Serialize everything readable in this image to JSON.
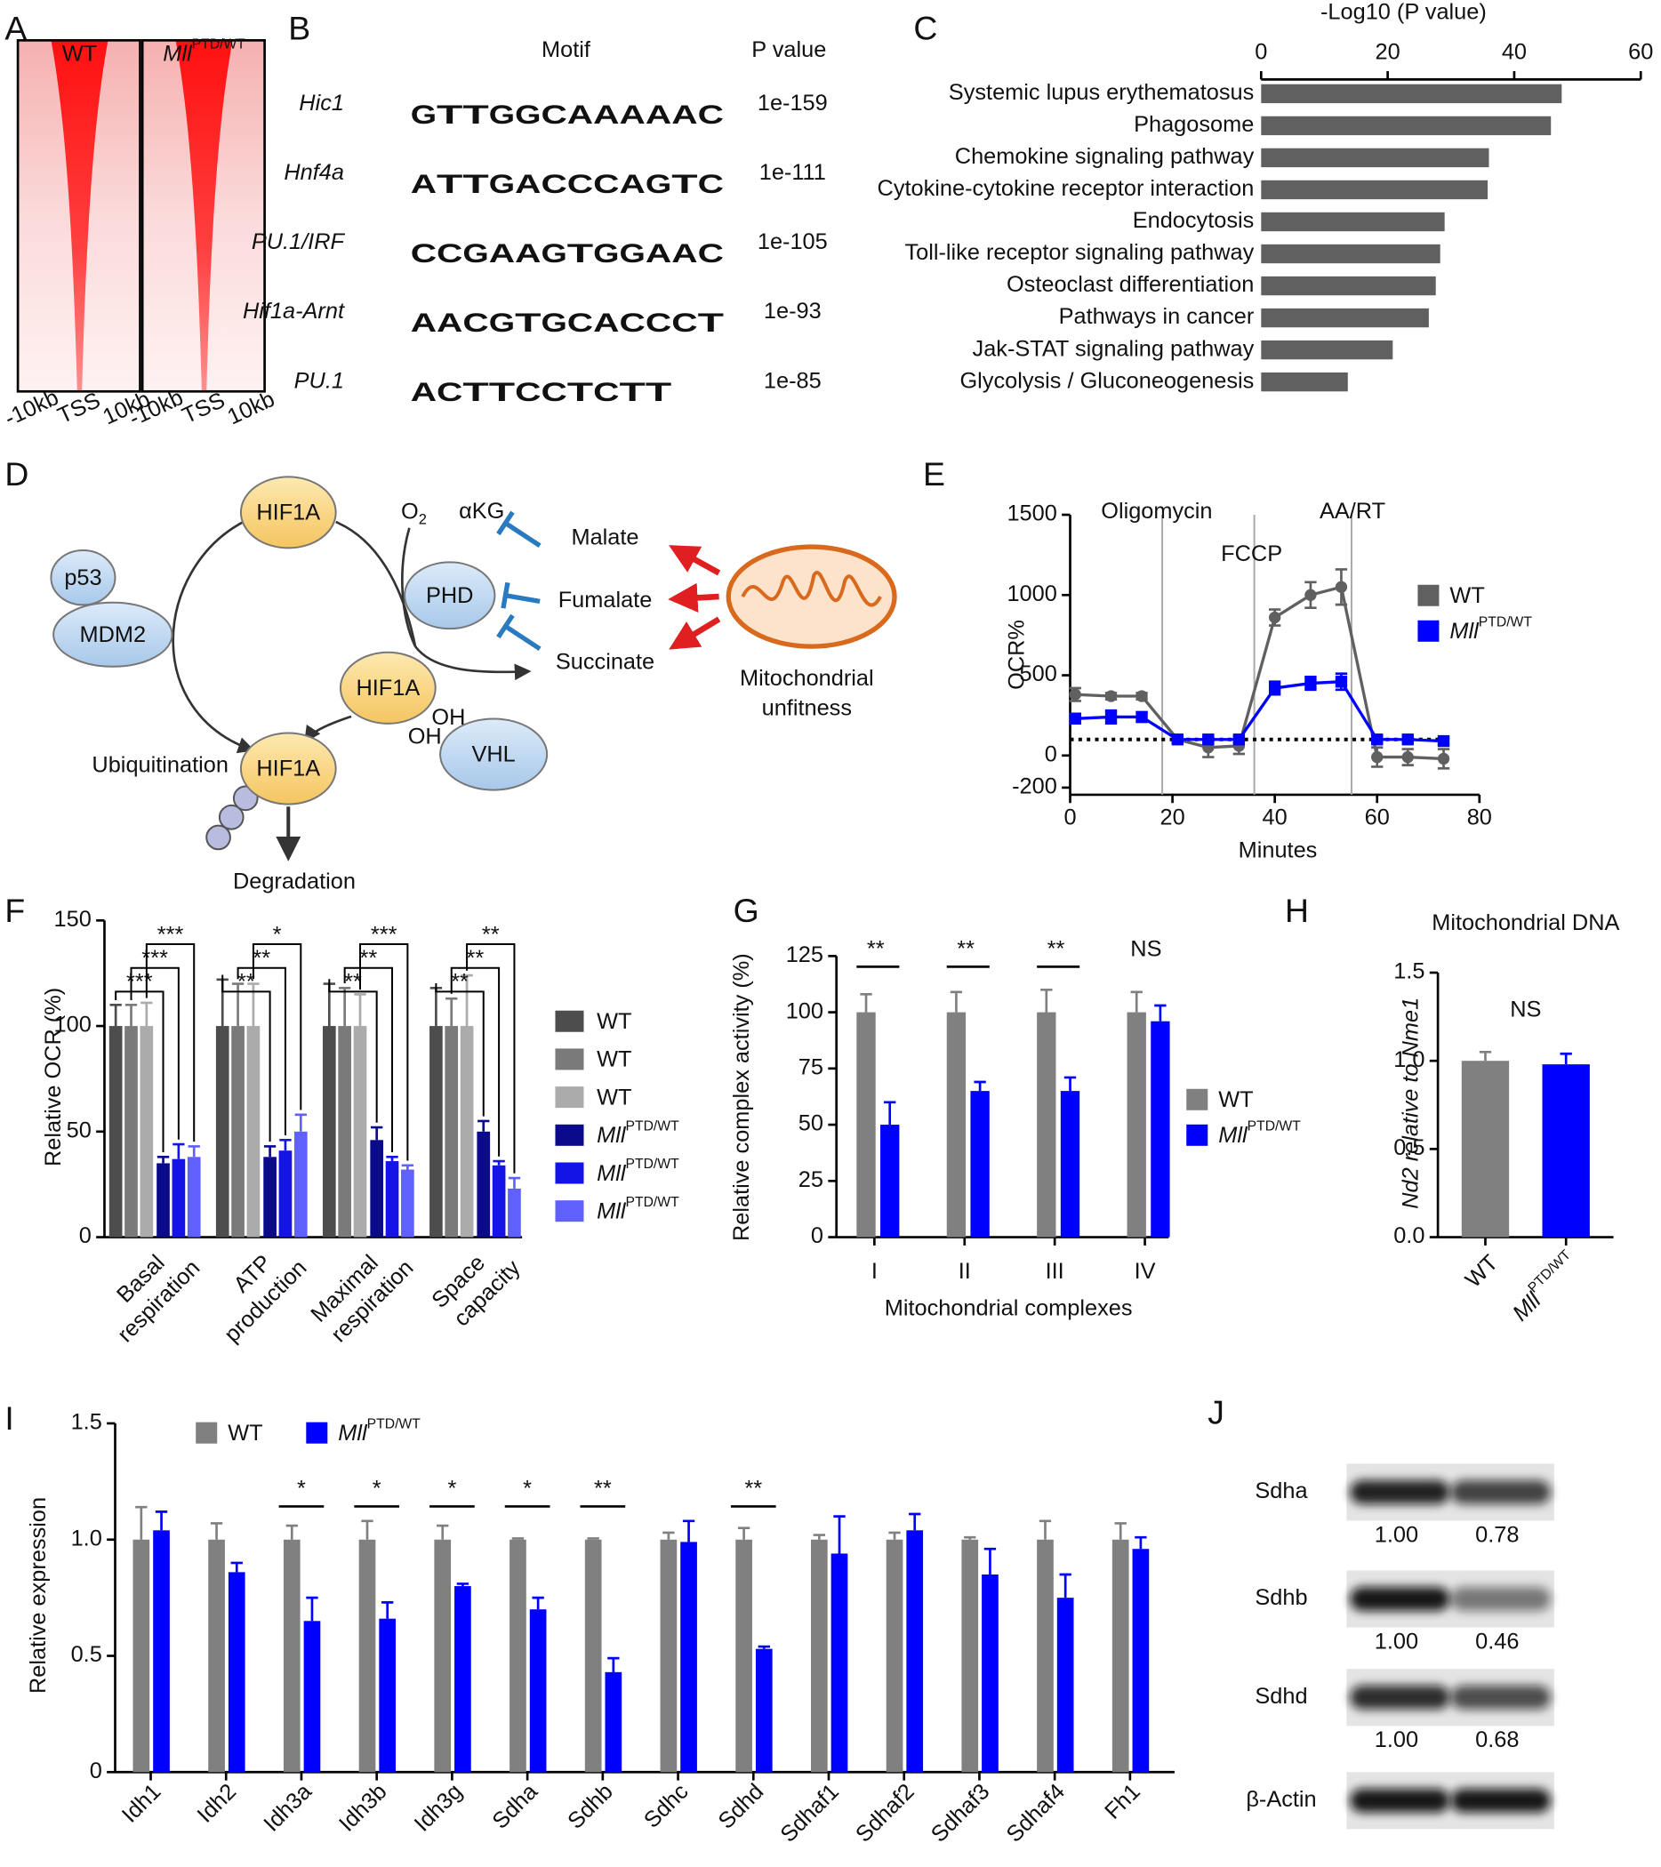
{
  "panel_labels": [
    "A",
    "B",
    "C",
    "D",
    "E",
    "F",
    "G",
    "H",
    "I",
    "J"
  ],
  "heatmap": {
    "columns": [
      {
        "label": "WT"
      },
      {
        "label": "Mll",
        "label_sup": "PTD/WT"
      }
    ],
    "ticks": [
      "-10kb",
      "TSS",
      "10kb"
    ]
  },
  "motifs": {
    "header": [
      "Motif",
      "P value"
    ],
    "rows": [
      {
        "name": "Hic1",
        "logo": "GTTGGCAAAAAC",
        "p_value": "1e-159"
      },
      {
        "name": "Hnf4a",
        "logo": "ATTGACCCAGTC",
        "p_value": "1e-111"
      },
      {
        "name": "PU.1/IRF",
        "logo": "CCGAAGTGGAAC",
        "p_value": "1e-105"
      },
      {
        "name": "Hif1a-Arnt",
        "logo": "AACGTGCACCCT",
        "p_value": "1e-93"
      },
      {
        "name": "PU.1",
        "logo": "ACTTCCTCTT",
        "p_value": "1e-85"
      }
    ]
  },
  "pathway": {
    "nodes": [
      {
        "label": "HIF1A"
      },
      {
        "label": "HIF1A"
      },
      {
        "label": "HIF1A"
      },
      {
        "label": "p53"
      },
      {
        "label": "MDM2"
      },
      {
        "label": "PHD"
      },
      {
        "label": "VHL"
      }
    ],
    "oxygen": {
      "label": "O",
      "sub": "2"
    },
    "cofactor": "αKG",
    "hydroxyls": [
      "OH",
      "OH"
    ],
    "metabolites": [
      "Malate",
      "Fumalate",
      "Succinate"
    ],
    "source": [
      "Mitochondrial",
      "unfitness"
    ],
    "ubiquitination": "Ubiquitination",
    "degradation": "Degradation"
  },
  "blot": {
    "lanes": [
      {
        "label": "WT"
      },
      {
        "label": "Mll",
        "label_sup": "PTD/WT"
      }
    ],
    "rows": [
      {
        "label": "Sdha",
        "values": [
          "1.00",
          "0.78"
        ]
      },
      {
        "label": "Sdhb",
        "values": [
          "1.00",
          "0.46"
        ]
      },
      {
        "label": "Sdhd",
        "values": [
          "1.00",
          "0.68"
        ]
      },
      {
        "label": "β-Actin"
      }
    ]
  },
  "chart_data": [
    {
      "type": "hbar",
      "title": "-Log10 (P value)",
      "categories": [
        "Systemic lupus erythematosus",
        "Phagosome",
        "Chemokine signaling pathway",
        "Cytokine-cytokine receptor interaction",
        "Endocytosis",
        "Toll-like receptor signaling pathway",
        "Osteoclast differentiation",
        "Pathways in cancer",
        "Jak-STAT signaling pathway",
        "Glycolysis / Gluconeogenesis"
      ],
      "values": [
        47.5,
        45.8,
        36,
        35.8,
        29,
        28.3,
        27.6,
        26.5,
        20.8,
        13.7
      ],
      "color": "#606060",
      "xlim": [
        0,
        60
      ],
      "xticks": [
        0,
        20,
        40,
        60
      ]
    },
    {
      "type": "line",
      "xlabel": "Minutes",
      "ylabel": "OCR%",
      "x": [
        1,
        8,
        14,
        21,
        27,
        33,
        40,
        47,
        53,
        60,
        66,
        73
      ],
      "series": [
        {
          "name": "WT",
          "color": "#606060",
          "values": [
            380,
            370,
            370,
            100,
            50,
            60,
            860,
            1000,
            1050,
            -10,
            -10,
            -20
          ],
          "errors": [
            40,
            20,
            20,
            20,
            60,
            50,
            50,
            80,
            110,
            60,
            50,
            60
          ]
        },
        {
          "name": "Mll",
          "name_sup": "PTD/WT",
          "color": "#0000ff",
          "values": [
            230,
            240,
            240,
            100,
            100,
            100,
            420,
            450,
            460,
            100,
            100,
            90
          ],
          "errors": [
            30,
            40,
            30,
            20,
            20,
            20,
            40,
            40,
            50,
            20,
            20,
            20
          ]
        }
      ],
      "xlim": [
        0,
        80
      ],
      "xticks": [
        0,
        20,
        40,
        60,
        80
      ],
      "ylim": [
        -200,
        1500
      ],
      "yticks": [
        -200,
        0,
        500,
        1000,
        1500
      ],
      "reference_line": 100,
      "events": [
        {
          "x": 18,
          "label": "Oligomycin"
        },
        {
          "x": 36,
          "label": "FCCP"
        },
        {
          "x": 55,
          "label": "AA/RT"
        }
      ]
    },
    {
      "type": "grouped_bar",
      "ylabel": "Relative OCR (%)",
      "categories": [
        [
          "Basal",
          "respiration"
        ],
        [
          "ATP",
          "production"
        ],
        [
          "Maximal",
          "respiration"
        ],
        [
          "Space",
          "capacity"
        ]
      ],
      "series": [
        {
          "name": "WT",
          "color": "#4d4d4d",
          "values": [
            100,
            100,
            100,
            100
          ],
          "errors": [
            10,
            22,
            20,
            18
          ]
        },
        {
          "name": "WT",
          "color": "#7a7a7a",
          "values": [
            100,
            100,
            100,
            100
          ],
          "errors": [
            10,
            20,
            18,
            13
          ]
        },
        {
          "name": "WT",
          "color": "#ababab",
          "values": [
            100,
            100,
            100,
            100
          ],
          "errors": [
            11,
            20,
            15,
            24
          ]
        },
        {
          "name": "Mll",
          "name_sup": "PTD/WT",
          "color": "#0a0a8a",
          "values": [
            35,
            38,
            46,
            50
          ],
          "errors": [
            3,
            5,
            6,
            5
          ]
        },
        {
          "name": "Mll",
          "name_sup": "PTD/WT",
          "color": "#1414e6",
          "values": [
            37,
            41,
            36,
            34
          ],
          "errors": [
            7,
            5,
            2,
            2
          ]
        },
        {
          "name": "Mll",
          "name_sup": "PTD/WT",
          "color": "#6060ff",
          "values": [
            38,
            50,
            32,
            23
          ],
          "errors": [
            5,
            8,
            2,
            5
          ]
        }
      ],
      "ylim": [
        0,
        150
      ],
      "yticks": [
        0,
        50,
        100,
        150
      ],
      "annotations": [
        [
          "***",
          "***",
          "***"
        ],
        [
          "**",
          "**",
          "*"
        ],
        [
          "**",
          "**",
          "***"
        ],
        [
          "**",
          "**",
          "**"
        ]
      ]
    },
    {
      "type": "grouped_bar",
      "ylabel": "Relative complex activity (%)",
      "xlabel": "Mitochondrial complexes",
      "categories": [
        "I",
        "II",
        "III",
        "IV"
      ],
      "series": [
        {
          "name": "WT",
          "color": "#808080",
          "values": [
            100,
            100,
            100,
            100
          ],
          "errors": [
            8,
            9,
            10,
            9
          ]
        },
        {
          "name": "Mll",
          "name_sup": "PTD/WT",
          "color": "#0000ff",
          "values": [
            50,
            65,
            65,
            96
          ],
          "errors": [
            10,
            4,
            6,
            7
          ]
        }
      ],
      "ylim": [
        0,
        125
      ],
      "yticks": [
        0,
        25,
        50,
        75,
        100,
        125
      ],
      "annotations": [
        "**",
        "**",
        "**",
        "NS"
      ]
    },
    {
      "type": "bar",
      "title": "Mitochondrial DNA",
      "ylabel": "Nd2 relative to Nme1",
      "annotation": "NS",
      "series": [
        {
          "name": "WT",
          "color": "#808080",
          "values": [
            1.0
          ],
          "errors": [
            0.05
          ]
        },
        {
          "name": "Mll",
          "name_sup": "PTD/WT",
          "color": "#0000ff",
          "values": [
            0.98
          ],
          "errors": [
            0.06
          ]
        }
      ],
      "ylim": [
        0,
        1.5
      ],
      "yticks": [
        {
          "value": 0,
          "label": "0.0"
        },
        0.5,
        {
          "value": 1,
          "label": "1.0"
        },
        1.5
      ]
    },
    {
      "type": "grouped_bar",
      "ylabel": "Relative expression",
      "categories": [
        "Idh1",
        "Idh2",
        "Idh3a",
        "Idh3b",
        "Idh3g",
        "Sdha",
        "Sdhb",
        "Sdhc",
        "Sdhd",
        "Sdhaf1",
        "Sdhaf2",
        "Sdhaf3",
        "Sdhaf4",
        "Fh1"
      ],
      "series": [
        {
          "name": "WT",
          "color": "#808080",
          "values": [
            1,
            1,
            1,
            1,
            1,
            1,
            1,
            1,
            1,
            1,
            1,
            1,
            1,
            1
          ],
          "errors": [
            0.14,
            0.07,
            0.06,
            0.08,
            0.06,
            0.005,
            0.005,
            0.03,
            0.05,
            0.02,
            0.03,
            0.01,
            0.08,
            0.07
          ]
        },
        {
          "name": "Mll",
          "name_sup": "PTD/WT",
          "color": "#0000ff",
          "values": [
            1.04,
            0.86,
            0.65,
            0.66,
            0.8,
            0.7,
            0.43,
            0.99,
            0.53,
            0.94,
            1.04,
            0.85,
            0.75,
            0.96
          ],
          "errors": [
            0.08,
            0.04,
            0.1,
            0.07,
            0.01,
            0.05,
            0.06,
            0.09,
            0.01,
            0.16,
            0.07,
            0.11,
            0.1,
            0.05
          ]
        }
      ],
      "ylim": [
        0,
        1.5
      ],
      "yticks": [
        0,
        0.5,
        {
          "value": 1,
          "label": "1.0"
        },
        1.5
      ],
      "annotations": [
        null,
        null,
        "*",
        "*",
        "*",
        "*",
        "**",
        null,
        "**",
        null,
        null,
        null,
        null,
        null
      ]
    }
  ]
}
